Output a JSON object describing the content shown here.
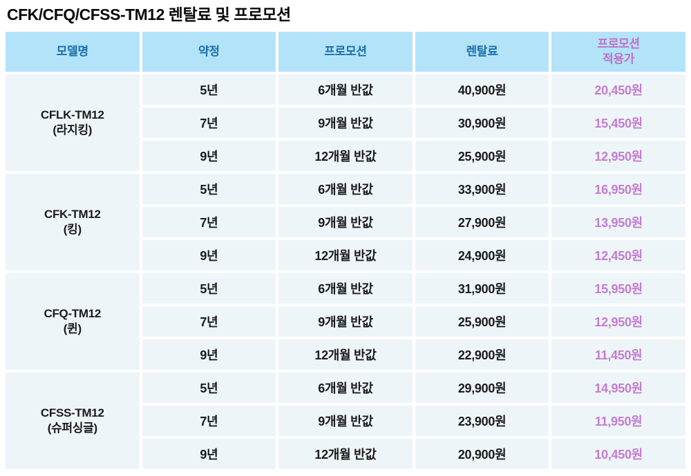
{
  "title": "CFK/CFQ/CFSS-TM12 렌탈료 및 프로모션",
  "colors": {
    "header_bg": "#b3e3f9",
    "header_text": "#1b6dab",
    "accent_pink": "#c16fc9",
    "body_bg": "#eef5f9",
    "body_text": "#1a1a1a",
    "promo_price_text": "#c47cd1",
    "page_bg": "#ffffff"
  },
  "table": {
    "headers": [
      {
        "label": "모델명"
      },
      {
        "label": "약정"
      },
      {
        "label": "프로모션"
      },
      {
        "label": "렌탈료"
      },
      {
        "label": "프로모션\n적용가"
      }
    ],
    "groups": [
      {
        "model": "CFLK-TM12",
        "variant": "(라지킹)",
        "rows": [
          {
            "term": "5년",
            "promo": "6개월 반값",
            "rental": "40,900원",
            "promo_price": "20,450원"
          },
          {
            "term": "7년",
            "promo": "9개월 반값",
            "rental": "30,900원",
            "promo_price": "15,450원"
          },
          {
            "term": "9년",
            "promo": "12개월 반값",
            "rental": "25,900원",
            "promo_price": "12,950원"
          }
        ]
      },
      {
        "model": "CFK-TM12",
        "variant": "(킹)",
        "rows": [
          {
            "term": "5년",
            "promo": "6개월 반값",
            "rental": "33,900원",
            "promo_price": "16,950원"
          },
          {
            "term": "7년",
            "promo": "9개월 반값",
            "rental": "27,900원",
            "promo_price": "13,950원"
          },
          {
            "term": "9년",
            "promo": "12개월 반값",
            "rental": "24,900원",
            "promo_price": "12,450원"
          }
        ]
      },
      {
        "model": "CFQ-TM12",
        "variant": "(퀸)",
        "rows": [
          {
            "term": "5년",
            "promo": "6개월 반값",
            "rental": "31,900원",
            "promo_price": "15,950원"
          },
          {
            "term": "7년",
            "promo": "9개월 반값",
            "rental": "25,900원",
            "promo_price": "12,950원"
          },
          {
            "term": "9년",
            "promo": "12개월 반값",
            "rental": "22,900원",
            "promo_price": "11,450원"
          }
        ]
      },
      {
        "model": "CFSS-TM12",
        "variant": "(슈퍼싱글)",
        "rows": [
          {
            "term": "5년",
            "promo": "6개월 반값",
            "rental": "29,900원",
            "promo_price": "14,950원"
          },
          {
            "term": "7년",
            "promo": "9개월 반값",
            "rental": "23,900원",
            "promo_price": "11,950원"
          },
          {
            "term": "9년",
            "promo": "12개월 반값",
            "rental": "20,900원",
            "promo_price": "10,450원"
          }
        ]
      }
    ]
  }
}
